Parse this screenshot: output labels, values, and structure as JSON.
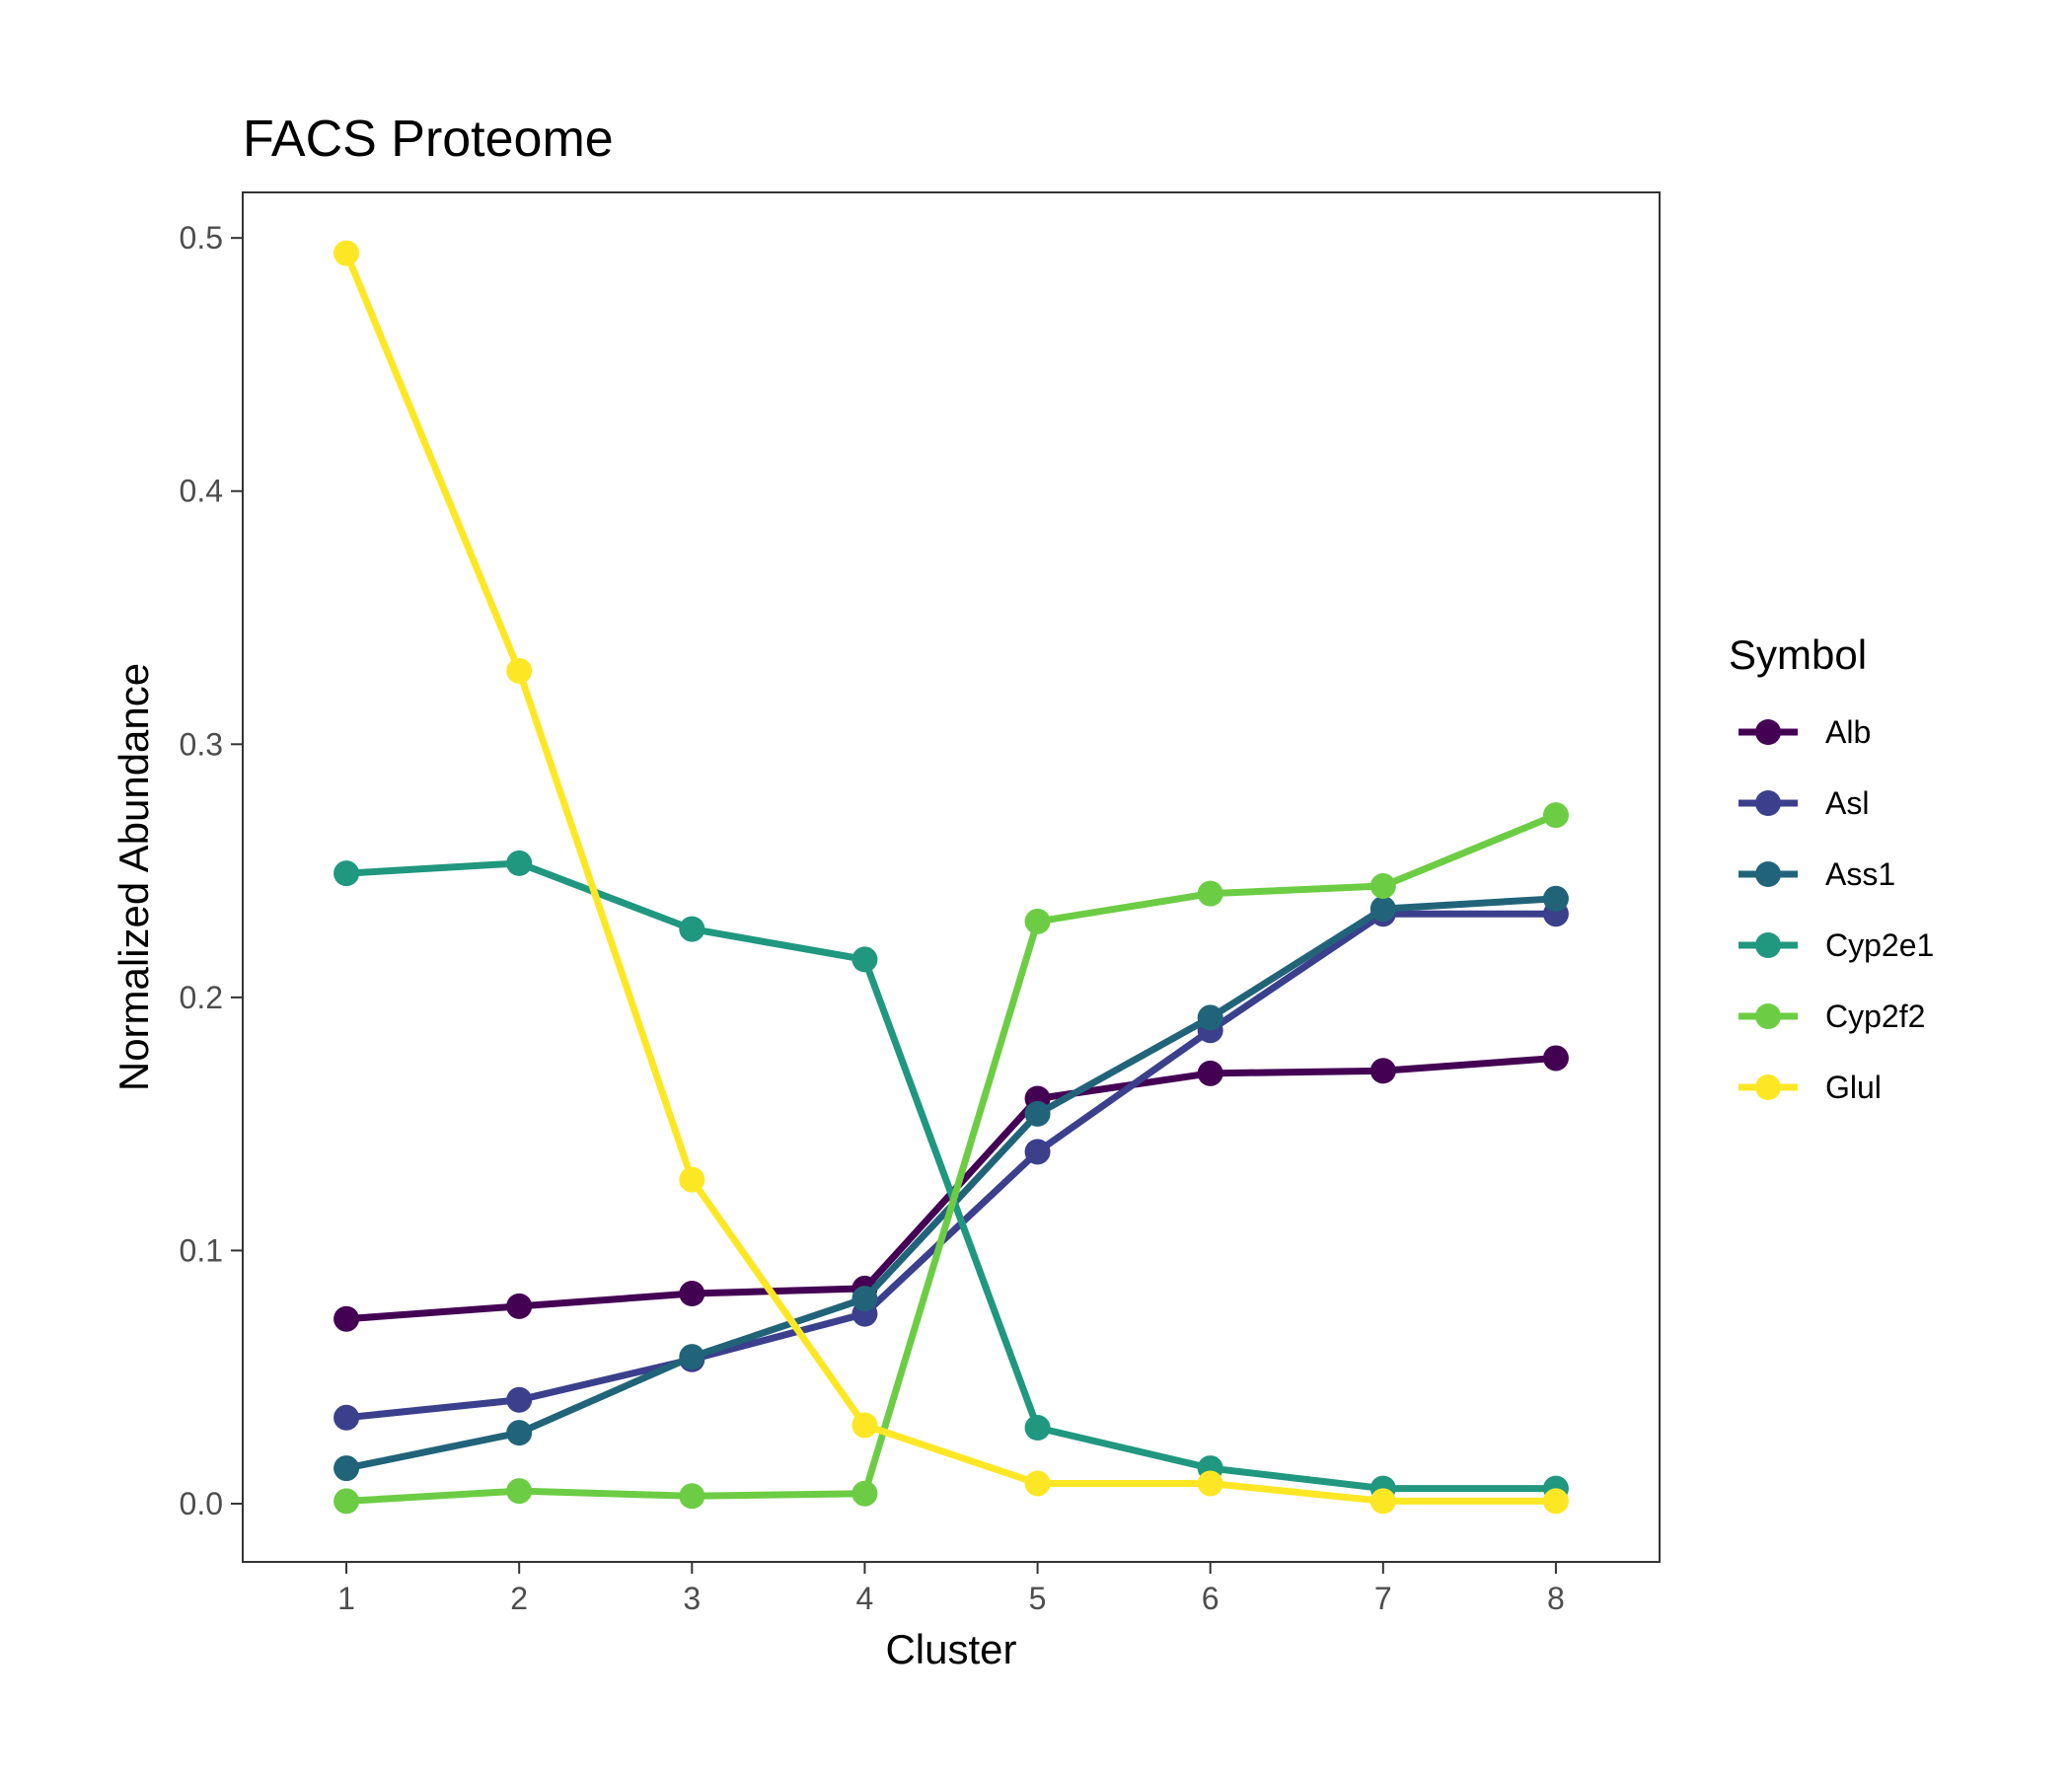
{
  "chart_data": {
    "type": "line",
    "title": "FACS Proteome",
    "xlabel": "Cluster",
    "ylabel": "Normalized Abundance",
    "x": [
      1,
      2,
      3,
      4,
      5,
      6,
      7,
      8
    ],
    "xticks": [
      "1",
      "2",
      "3",
      "4",
      "5",
      "6",
      "7",
      "8"
    ],
    "ylim": [
      -0.023,
      0.518
    ],
    "yticks": [
      "0.0",
      "0.1",
      "0.2",
      "0.3",
      "0.4",
      "0.5"
    ],
    "grid": false,
    "legend": {
      "title": "Symbol",
      "placement": "right"
    },
    "series": [
      {
        "name": "Alb",
        "color": "#440154",
        "values": [
          0.073,
          0.078,
          0.083,
          0.085,
          0.16,
          0.17,
          0.171,
          0.176
        ]
      },
      {
        "name": "Asl",
        "color": "#3b3f8c",
        "values": [
          0.034,
          0.041,
          0.057,
          0.075,
          0.139,
          0.187,
          0.233,
          0.233
        ]
      },
      {
        "name": "Ass1",
        "color": "#21647a",
        "values": [
          0.014,
          0.028,
          0.058,
          0.081,
          0.154,
          0.192,
          0.235,
          0.239
        ]
      },
      {
        "name": "Cyp2e1",
        "color": "#20977f",
        "values": [
          0.249,
          0.253,
          0.227,
          0.215,
          0.03,
          0.014,
          0.006,
          0.006
        ]
      },
      {
        "name": "Cyp2f2",
        "color": "#6ccd44",
        "values": [
          0.001,
          0.005,
          0.003,
          0.004,
          0.23,
          0.241,
          0.244,
          0.272
        ]
      },
      {
        "name": "Glul",
        "color": "#fde725",
        "values": [
          0.494,
          0.329,
          0.128,
          0.031,
          0.008,
          0.008,
          0.001,
          0.001
        ]
      }
    ]
  }
}
